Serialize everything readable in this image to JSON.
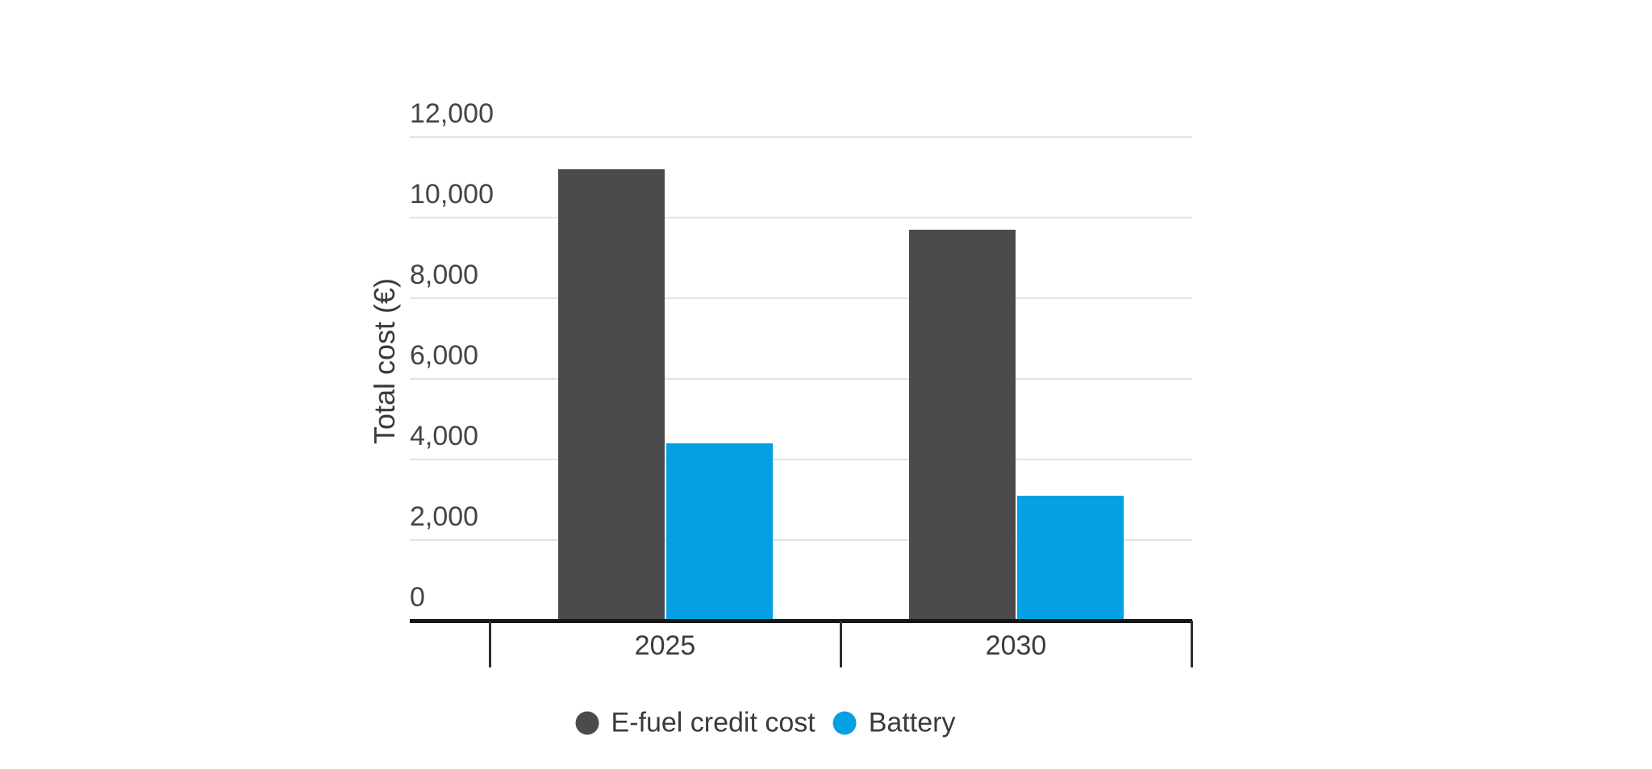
{
  "chart_data": {
    "type": "bar",
    "title": "",
    "categories": [
      "2025",
      "2030"
    ],
    "series": [
      {
        "name": "E-fuel credit cost",
        "color": "#4b4b4d",
        "values": [
          11200,
          9700
        ]
      },
      {
        "name": "Battery",
        "color": "#05a0e3",
        "values": [
          4400,
          3100
        ]
      }
    ],
    "xlabel": "",
    "ylabel": "Total cost (€)",
    "ylim": [
      0,
      12000
    ],
    "yticks": [
      0,
      2000,
      4000,
      6000,
      8000,
      10000,
      12000
    ],
    "ytick_labels": [
      "0",
      "2,000",
      "4,000",
      "6,000",
      "8,000",
      "10,000",
      "12,000"
    ],
    "grid": "horizontal-only",
    "legend_position": "bottom-center",
    "colors": {
      "grid": "#e2e2e2",
      "axis": "#161616",
      "category_tick": "#2e2e2e",
      "tick_text": "#454545"
    }
  }
}
